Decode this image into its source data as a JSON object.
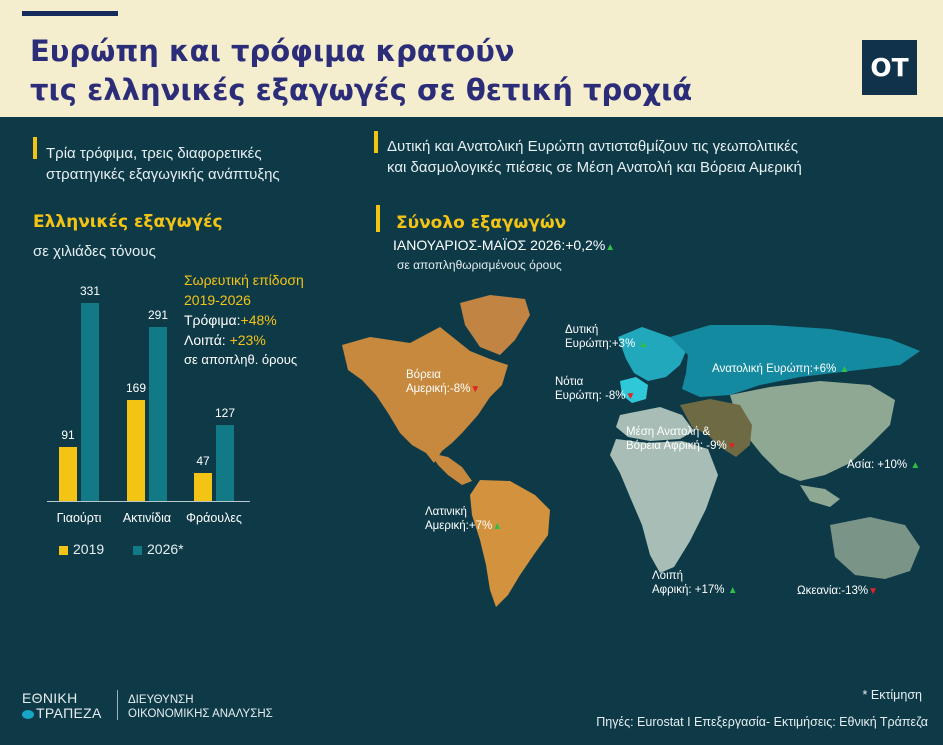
{
  "header": {
    "title_line1": "Ευρώπη και τρόφιμα κρατούν",
    "title_line2": "τις ελληνικές εξαγωγές σε θετική τροχιά",
    "logo": "ΟΤ",
    "colors": {
      "background": "#f4edce",
      "title": "#2b2d78"
    }
  },
  "left_intro": {
    "line1": "Τρία τρόφιμα, τρεις διαφορετικές",
    "line2": "στρατηγικές εξαγωγικής ανάπτυξης"
  },
  "right_intro": {
    "line1": "Δυτική και Ανατολική Ευρώπη αντισταθμίζουν τις  γεωπολιτικές",
    "line2": "και δασμολογικές πιέσεις σε Μέση Ανατολή και Βόρεια Αμερική"
  },
  "exports": {
    "title": "Ελληνικές εξαγωγές",
    "unit": "σε χιλιάδες τόνους"
  },
  "cumulative": {
    "line1": "Σωρευτική επίδοση",
    "line2": "2019-2026",
    "food_label": "Τρόφιμα:",
    "food_value": "+48%",
    "other_label": "Λοιπά:",
    "other_value": "+23%",
    "note": "σε αποπληθ. όρους"
  },
  "chart_data": {
    "type": "bar",
    "categories": [
      "Γιαούρτι",
      "Ακτινίδια",
      "Φράουλες"
    ],
    "series": [
      {
        "name": "2019",
        "values": [
          91,
          169,
          47
        ],
        "color": "#f4c414"
      },
      {
        "name": "2026*",
        "values": [
          331,
          291,
          127
        ],
        "color": "#127a86"
      }
    ],
    "value_labels": [
      [
        "91",
        "169",
        "47"
      ],
      [
        "331",
        "291",
        "127"
      ]
    ],
    "legend": "bottom-left",
    "grid": false,
    "ylim": [
      0,
      331
    ]
  },
  "total": {
    "title": "Σύνολο εξαγωγών",
    "period": "ΙΑΝΟΥΑΡΙΟΣ-ΜΑΪΟΣ 2026:+0,2%",
    "note": "σε αποπληθωρισμένους όρους"
  },
  "map": {
    "colors": {
      "north_america": "#c7893e",
      "latin_america": "#d3923d",
      "western_europe": "#22a8bd",
      "eastern_europe": "#148aa0",
      "southern_europe": "#2fc8d8",
      "asia": "#8fa894",
      "africa": "#a7bdb5",
      "mena": "#6e6b44",
      "oceania": "#7a9487",
      "greenland": "#c18443"
    },
    "regions": [
      {
        "id": "western-europe",
        "line1": "Δυτική",
        "line2": "Ευρώπη:",
        "value": "+3%",
        "trend": "up"
      },
      {
        "id": "eastern-europe",
        "line1": "",
        "line2": "Ανατολική Ευρώπη:",
        "value": "+6%",
        "trend": "up"
      },
      {
        "id": "north-america",
        "line1": "Βόρεια",
        "line2": "Αμερική:",
        "value": "-8%",
        "trend": "down"
      },
      {
        "id": "southern-europe",
        "line1": "Νότια",
        "line2": "Ευρώπη:",
        "value": " -8%",
        "trend": "down"
      },
      {
        "id": "mena",
        "line1": "Μέση Ανατολή &",
        "line2": "Βόρεια Αφρική:",
        "value": " -9%",
        "trend": "down"
      },
      {
        "id": "asia",
        "line1": "",
        "line2": "Ασία:",
        "value": " +10%",
        "trend": "up"
      },
      {
        "id": "latin-america",
        "line1": "Λατινική",
        "line2": "Αμερική:",
        "value": "+7%",
        "trend": "up"
      },
      {
        "id": "rest-africa",
        "line1": "Λοιπή",
        "line2": "Αφρική:",
        "value": "  +17%",
        "trend": "up"
      },
      {
        "id": "oceania",
        "line1": "",
        "line2": "Ωκεανία:",
        "value": "-13%",
        "trend": "down"
      }
    ]
  },
  "footer": {
    "brand_line1": "ΕΘΝΙΚΗ",
    "brand_line2": "ΤΡΑΠΕΖΑ",
    "division_line1": "ΔΙΕΥΘΥΝΣΗ",
    "division_line2": "ΟΙΚΟΝΟΜΙΚΗΣ ΑΝΑΛΥΣΗΣ",
    "estimate": "* Εκτίμηση",
    "sources": "Πηγές: Eurostat I Επεξεργασία- Εκτιμήσεις:  Εθνική Τράπεζα"
  },
  "icons": {
    "up": "▲",
    "down": "▼"
  }
}
